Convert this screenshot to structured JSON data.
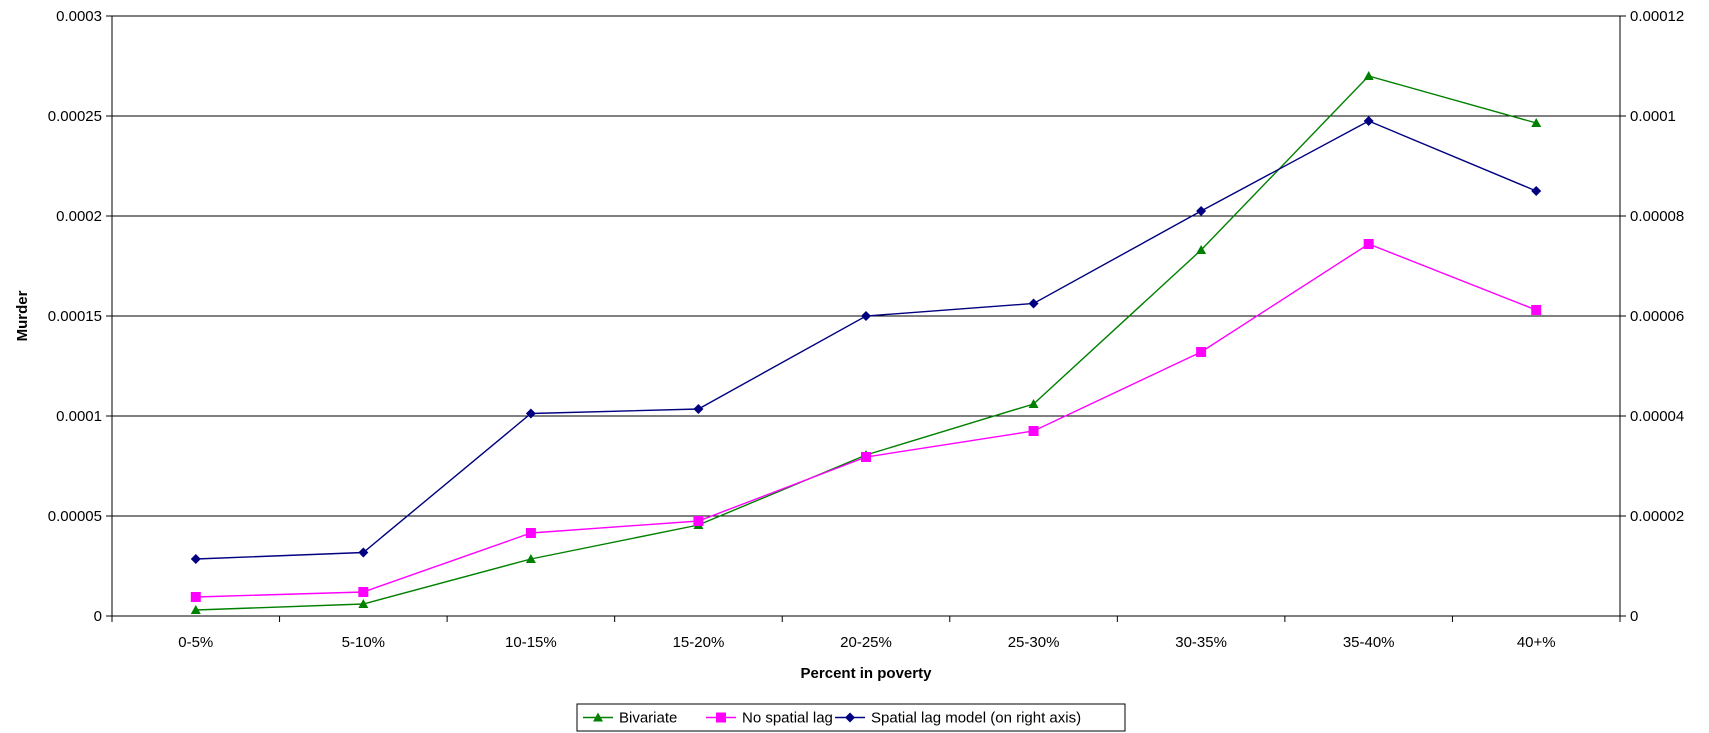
{
  "chart_data": {
    "type": "line",
    "xlabel": "Percent in poverty",
    "ylabel": "Murder",
    "categories": [
      "0-5%",
      "5-10%",
      "10-15%",
      "15-20%",
      "20-25%",
      "25-30%",
      "30-35%",
      "35-40%",
      "40+%"
    ],
    "ylim_left": [
      0,
      0.0003
    ],
    "ylim_right": [
      0,
      0.00012
    ],
    "yticks_left": [
      "0",
      "0.00005",
      "0.0001",
      "0.00015",
      "0.0002",
      "0.00025",
      "0.0003"
    ],
    "yticks_right": [
      "0",
      "0.00002",
      "0.00004",
      "0.00006",
      "0.00008",
      "0.0001",
      "0.00012"
    ],
    "grid": true,
    "legend_position": "bottom",
    "series": [
      {
        "name": "Bivariate",
        "axis": "left",
        "marker": "triangle",
        "color": "#008000",
        "values": [
          3e-06,
          6e-06,
          2.85e-05,
          4.55e-05,
          8.05e-05,
          0.000106,
          0.000183,
          0.00027,
          0.0002465
        ]
      },
      {
        "name": "No spatial lag",
        "axis": "left",
        "marker": "square",
        "color": "#FF00FF",
        "values": [
          9.5e-06,
          1.2e-05,
          4.15e-05,
          4.75e-05,
          7.95e-05,
          9.25e-05,
          0.000132,
          0.000186,
          0.000153
        ]
      },
      {
        "name": "Spatial lag model (on right axis)",
        "axis": "right",
        "marker": "diamond",
        "color": "#000080",
        "values": [
          1.14e-05,
          1.27e-05,
          4.05e-05,
          4.14e-05,
          6e-05,
          6.25e-05,
          8.1e-05,
          9.9e-05,
          8.5e-05
        ]
      }
    ]
  }
}
